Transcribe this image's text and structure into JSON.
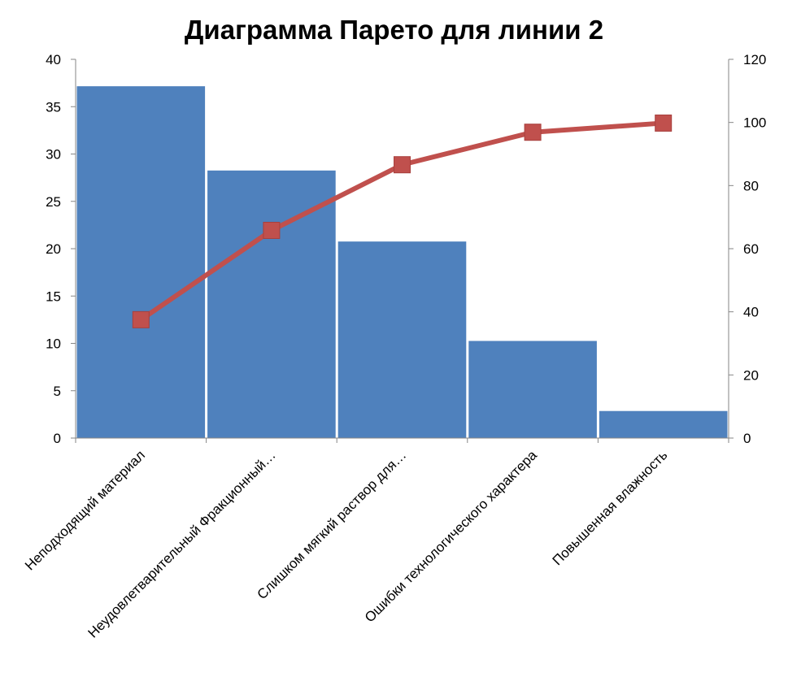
{
  "chart_data": {
    "type": "bar",
    "title": "Диаграмма Парето для линии 2",
    "categories": [
      "Неподходящий материал",
      "Неудовлетварительный Фракционный…",
      "Слишком мягкий раствор для…",
      "Ошибки технологического характера",
      "Повышенная влажность"
    ],
    "series": [
      {
        "type": "bar",
        "axis": "left",
        "color": "#4F81BD",
        "values": [
          37.2,
          28.3,
          20.8,
          10.3,
          2.9
        ]
      },
      {
        "type": "line",
        "axis": "right",
        "color": "#C0504D",
        "values": [
          37.5,
          65.8,
          86.6,
          96.9,
          99.8
        ]
      }
    ],
    "y_left": {
      "ylim": [
        0,
        40
      ],
      "ticks": [
        "0",
        "5",
        "10",
        "15",
        "20",
        "25",
        "30",
        "35",
        "40"
      ]
    },
    "y_right": {
      "ylim": [
        0,
        120
      ],
      "ticks": [
        "0",
        "20",
        "40",
        "60",
        "80",
        "100",
        "120"
      ]
    },
    "grid": false,
    "legend": "none"
  }
}
